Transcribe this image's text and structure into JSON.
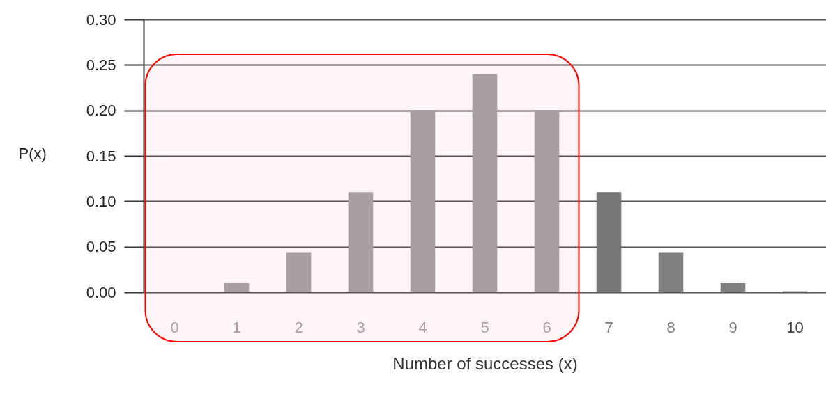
{
  "chart_data": {
    "type": "bar",
    "xlabel": "Number of successes (x)",
    "ylabel": "P(x)",
    "categories": [
      "0",
      "1",
      "2",
      "3",
      "4",
      "5",
      "6",
      "7",
      "8",
      "9",
      "10"
    ],
    "values": [
      null,
      0.01,
      0.044,
      0.11,
      0.2,
      0.24,
      0.2,
      0.11,
      0.044,
      0.01,
      0.001
    ],
    "colors": [
      "#a6a6a6",
      "#a6a6a6",
      "#a6a6a6",
      "#a6a6a6",
      "#a6a6a6",
      "#a6a6a6",
      "#a6a6a6",
      "#777777",
      "#7f7f7f",
      "#808080",
      "#404040"
    ],
    "ylim": [
      0,
      0.3
    ],
    "yticks": [
      {
        "value": 0,
        "label": "0.00"
      },
      {
        "value": 0.05,
        "label": "0.05"
      },
      {
        "value": 0.1,
        "label": "0.10"
      },
      {
        "value": 0.15,
        "label": "0.15"
      },
      {
        "value": 0.2,
        "label": "0.20"
      },
      {
        "value": 0.25,
        "label": "0.25"
      },
      {
        "value": 0.3,
        "label": "0.30"
      }
    ],
    "grid": "y",
    "bands": [
      {
        "axis": "x",
        "from": "0",
        "to": "6",
        "color": "#ff0000"
      }
    ]
  }
}
